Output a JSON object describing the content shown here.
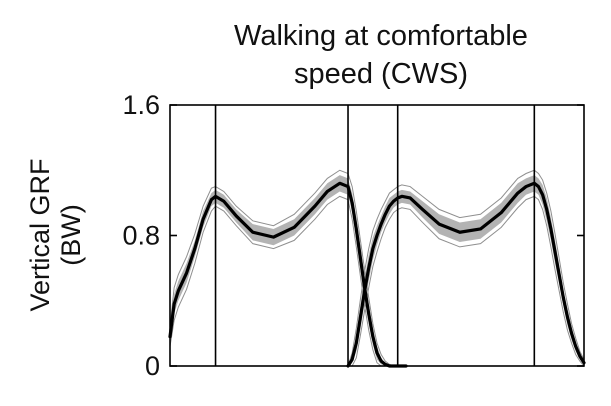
{
  "chart_data": {
    "type": "line",
    "title_lines": [
      "Walking at comfortable",
      "speed (CWS)"
    ],
    "xlabel": "",
    "ylabel_lines": [
      "Vertical GRF",
      "(BW)"
    ],
    "ylim": [
      0,
      1.6
    ],
    "xlim": [
      0,
      100
    ],
    "y_ticks": [
      "0",
      "0.8",
      "1.6"
    ],
    "grid": false,
    "vertical_event_lines_x": [
      11,
      43,
      55,
      88
    ],
    "series": [
      {
        "color": "#000000",
        "band_color": "#b3b3b3",
        "envelope_color": "#8f8f8f",
        "x": [
          0,
          1,
          2,
          4,
          6,
          8,
          10,
          11,
          13,
          16,
          20,
          25,
          30,
          35,
          38,
          41,
          43,
          44,
          45,
          46,
          47,
          48,
          49,
          50,
          51,
          52,
          53,
          54,
          55,
          56,
          57
        ],
        "y": [
          0.18,
          0.38,
          0.46,
          0.57,
          0.72,
          0.9,
          1.02,
          1.04,
          1.01,
          0.92,
          0.82,
          0.79,
          0.85,
          0.98,
          1.07,
          1.12,
          1.1,
          1.0,
          0.84,
          0.66,
          0.48,
          0.32,
          0.18,
          0.08,
          0.03,
          0.01,
          0.0,
          0.0,
          0.0,
          0.0,
          0.0
        ],
        "band_halfwidth": [
          0.03,
          0.06,
          0.06,
          0.06,
          0.05,
          0.05,
          0.04,
          0.04,
          0.04,
          0.04,
          0.05,
          0.05,
          0.05,
          0.05,
          0.05,
          0.05,
          0.05,
          0.06,
          0.07,
          0.07,
          0.07,
          0.06,
          0.05,
          0.04,
          0.02,
          0.01,
          0.0,
          0.0,
          0.0,
          0.0,
          0.0
        ],
        "envelope_halfwidth": [
          0.06,
          0.1,
          0.1,
          0.1,
          0.09,
          0.08,
          0.07,
          0.06,
          0.06,
          0.06,
          0.07,
          0.07,
          0.08,
          0.08,
          0.08,
          0.08,
          0.08,
          0.1,
          0.11,
          0.11,
          0.11,
          0.1,
          0.08,
          0.06,
          0.04,
          0.02,
          0.01,
          0.0,
          0.0,
          0.0,
          0.0
        ]
      },
      {
        "color": "#000000",
        "band_color": "#b3b3b3",
        "envelope_color": "#8f8f8f",
        "x": [
          43,
          44,
          45,
          46,
          47,
          48,
          49,
          50,
          51,
          52,
          53,
          54,
          55,
          56,
          58,
          61,
          65,
          70,
          75,
          80,
          84,
          86,
          88,
          89,
          90,
          91,
          92,
          93,
          94,
          95,
          96,
          97,
          98,
          99,
          100
        ],
        "y": [
          0.0,
          0.04,
          0.14,
          0.3,
          0.46,
          0.6,
          0.72,
          0.8,
          0.87,
          0.93,
          0.98,
          1.01,
          1.03,
          1.04,
          1.03,
          0.96,
          0.87,
          0.82,
          0.84,
          0.94,
          1.06,
          1.1,
          1.12,
          1.1,
          1.05,
          0.96,
          0.84,
          0.7,
          0.56,
          0.42,
          0.3,
          0.2,
          0.12,
          0.06,
          0.02
        ],
        "band_halfwidth": [
          0.0,
          0.02,
          0.05,
          0.07,
          0.08,
          0.08,
          0.07,
          0.06,
          0.05,
          0.05,
          0.05,
          0.04,
          0.04,
          0.04,
          0.04,
          0.05,
          0.06,
          0.06,
          0.06,
          0.06,
          0.06,
          0.05,
          0.05,
          0.05,
          0.06,
          0.07,
          0.07,
          0.07,
          0.06,
          0.05,
          0.05,
          0.04,
          0.03,
          0.02,
          0.01
        ],
        "envelope_halfwidth": [
          0.0,
          0.04,
          0.09,
          0.11,
          0.12,
          0.12,
          0.11,
          0.1,
          0.09,
          0.08,
          0.08,
          0.07,
          0.07,
          0.07,
          0.07,
          0.08,
          0.09,
          0.09,
          0.09,
          0.09,
          0.09,
          0.08,
          0.08,
          0.08,
          0.09,
          0.1,
          0.11,
          0.11,
          0.1,
          0.09,
          0.08,
          0.06,
          0.05,
          0.03,
          0.02
        ]
      }
    ]
  }
}
